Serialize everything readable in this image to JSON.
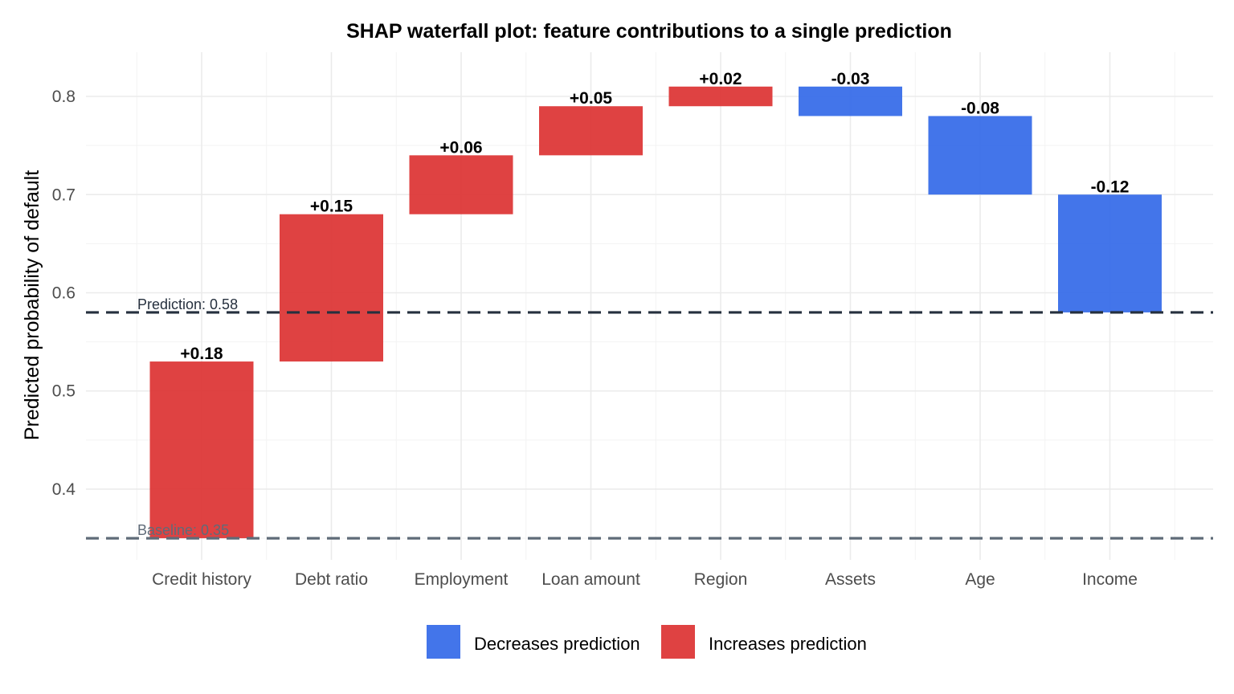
{
  "chart_data": {
    "type": "waterfall",
    "title": "SHAP waterfall plot: feature contributions to a single prediction",
    "xlabel": "",
    "ylabel": "Predicted probability of default",
    "ylim": [
      0.328,
      0.845
    ],
    "yticks": [
      0.4,
      0.5,
      0.6,
      0.7,
      0.8
    ],
    "ytick_labels": [
      "0.4",
      "0.5",
      "0.6",
      "0.7",
      "0.8"
    ],
    "grid": true,
    "baseline": {
      "value": 0.35,
      "label": "Baseline: 0.35",
      "color": "#5f6b78"
    },
    "prediction": {
      "value": 0.58,
      "label": "Prediction: 0.58",
      "color": "#26303e"
    },
    "categories": [
      "Credit history",
      "Debt ratio",
      "Employment",
      "Loan amount",
      "Region",
      "Assets",
      "Age",
      "Income"
    ],
    "contributions": [
      0.18,
      0.15,
      0.06,
      0.05,
      0.02,
      -0.03,
      -0.08,
      -0.12
    ],
    "bars": [
      {
        "feature": "Credit history",
        "start": 0.35,
        "end": 0.53,
        "value_label": "+0.18",
        "direction": "increase"
      },
      {
        "feature": "Debt ratio",
        "start": 0.53,
        "end": 0.68,
        "value_label": "+0.15",
        "direction": "increase"
      },
      {
        "feature": "Employment",
        "start": 0.68,
        "end": 0.74,
        "value_label": "+0.06",
        "direction": "increase"
      },
      {
        "feature": "Loan amount",
        "start": 0.74,
        "end": 0.79,
        "value_label": "+0.05",
        "direction": "increase"
      },
      {
        "feature": "Region",
        "start": 0.79,
        "end": 0.81,
        "value_label": "+0.02",
        "direction": "increase"
      },
      {
        "feature": "Assets",
        "start": 0.81,
        "end": 0.78,
        "value_label": "-0.03",
        "direction": "decrease"
      },
      {
        "feature": "Age",
        "start": 0.78,
        "end": 0.7,
        "value_label": "-0.08",
        "direction": "decrease"
      },
      {
        "feature": "Income",
        "start": 0.7,
        "end": 0.58,
        "value_label": "-0.12",
        "direction": "decrease"
      }
    ],
    "colors": {
      "increase": "#dc3232",
      "decrease": "#3369e8"
    },
    "legend": {
      "position": "bottom",
      "entries": [
        {
          "label": "Decreases prediction",
          "direction": "decrease"
        },
        {
          "label": "Increases prediction",
          "direction": "increase"
        }
      ]
    }
  }
}
